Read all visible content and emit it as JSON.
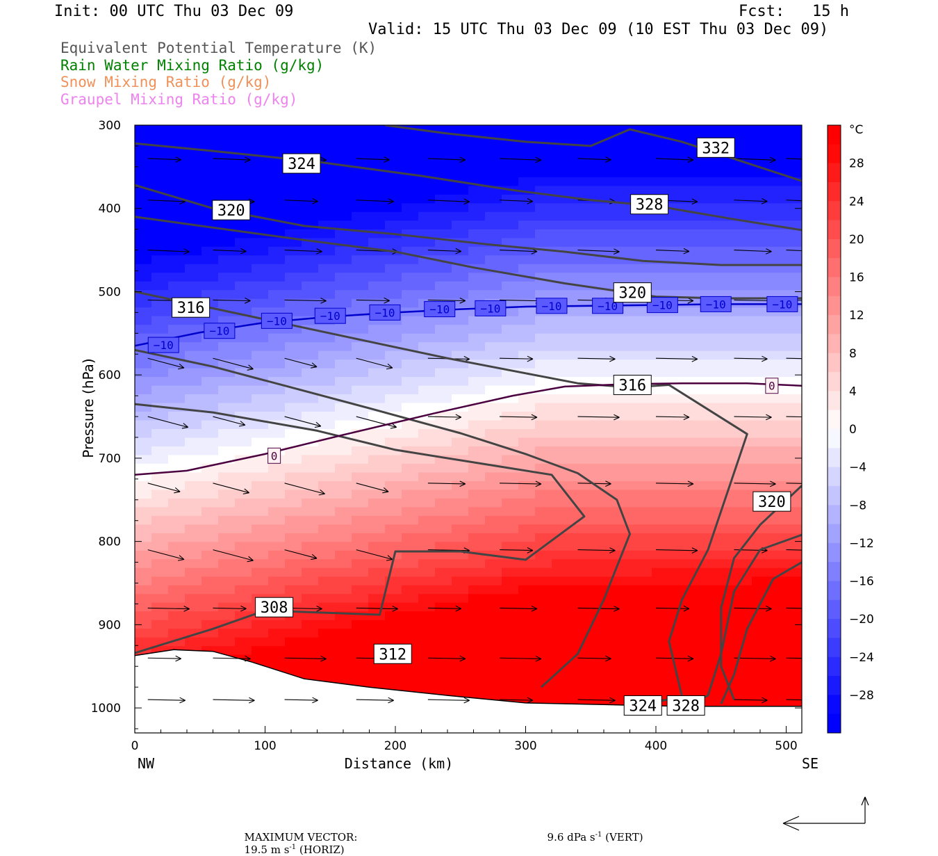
{
  "header": {
    "init": "Init: 00 UTC Thu 03 Dec 09",
    "fcst": "Fcst:   15 h",
    "valid": "Valid: 15 UTC Thu 03 Dec 09 (10 EST Thu 03 Dec 09)"
  },
  "legend": [
    {
      "text": "Equivalent Potential Temperature (K)",
      "color": "#555555"
    },
    {
      "text": "Rain Water Mixing Ratio (g/kg)",
      "color": "#008000"
    },
    {
      "text": "Snow Mixing Ratio (g/kg)",
      "color": "#f0915a"
    },
    {
      "text": "Graupel Mixing Ratio (g/kg)",
      "color": "#ee82ee"
    }
  ],
  "footer": {
    "max_vector_label": "MAXIMUM VECTOR:",
    "horiz_value": "19.5 m s",
    "horiz_unit": " (HORIZ)",
    "vert_value": "9.6 dPa s",
    "vert_unit": " (VERT)",
    "exponent": "-1"
  },
  "chart_data": {
    "type": "heatmap",
    "xlabel": "Distance (km)",
    "ylabel": "Pressure (hPa)",
    "x_ticks": [
      0,
      100,
      200,
      300,
      400,
      500
    ],
    "y_ticks": [
      300,
      400,
      500,
      600,
      700,
      800,
      900,
      1000
    ],
    "xlim": [
      0,
      512
    ],
    "ylim": [
      300,
      1030
    ],
    "x_end_labels": {
      "left": "NW",
      "right": "SE"
    },
    "colorbar": {
      "unit": "°C",
      "range": [
        -32,
        32
      ],
      "tick_labels": [
        "28",
        "24",
        "20",
        "16",
        "12",
        "8",
        "4",
        "0",
        "−4",
        "−8",
        "−12",
        "−16",
        "−20",
        "−24",
        "−28"
      ],
      "tick_values": [
        28,
        24,
        20,
        16,
        12,
        8,
        4,
        0,
        -4,
        -8,
        -12,
        -16,
        -20,
        -24,
        -28
      ]
    },
    "temperature_contours": [
      {
        "value": -10,
        "label": "−10",
        "color": "#0000cc",
        "points": [
          [
            0,
            565
          ],
          [
            50,
            549
          ],
          [
            100,
            537
          ],
          [
            150,
            530
          ],
          [
            200,
            525
          ],
          [
            250,
            521
          ],
          [
            300,
            518
          ],
          [
            350,
            517
          ],
          [
            400,
            516
          ],
          [
            450,
            515
          ],
          [
            512,
            515
          ]
        ],
        "labels_at": [
          [
            22,
            564
          ],
          [
            65,
            547
          ],
          [
            109,
            535
          ],
          [
            150,
            529
          ],
          [
            192,
            525
          ],
          [
            234,
            521
          ],
          [
            273,
            520
          ],
          [
            320,
            517
          ],
          [
            363,
            517
          ],
          [
            405,
            516
          ],
          [
            446,
            515
          ],
          [
            497,
            515
          ]
        ]
      },
      {
        "value": 0,
        "label": "0",
        "color": "#4b0040",
        "points": [
          [
            0,
            720
          ],
          [
            40,
            715
          ],
          [
            100,
            695
          ],
          [
            160,
            672
          ],
          [
            230,
            646
          ],
          [
            290,
            625
          ],
          [
            330,
            614
          ],
          [
            380,
            611
          ],
          [
            420,
            610
          ],
          [
            470,
            610
          ],
          [
            512,
            613
          ]
        ],
        "labels_at": [
          [
            107,
            697
          ],
          [
            489,
            613
          ]
        ]
      }
    ],
    "theta_e_contours": [
      {
        "value": 332,
        "label": "332",
        "points": [
          [
            192,
            300
          ],
          [
            240,
            310
          ],
          [
            300,
            320
          ],
          [
            350,
            325
          ],
          [
            380,
            305
          ],
          [
            420,
            320
          ],
          [
            512,
            367
          ]
        ],
        "labels_at": [
          [
            446,
            327
          ]
        ]
      },
      {
        "value": 328,
        "label": "328",
        "points": [
          [
            0,
            322
          ],
          [
            60,
            331
          ],
          [
            140,
            344
          ],
          [
            220,
            361
          ],
          [
            290,
            378
          ],
          [
            350,
            390
          ],
          [
            400,
            397
          ],
          [
            460,
            413
          ],
          [
            512,
            426
          ]
        ],
        "labels_at": [
          [
            395,
            395
          ]
        ]
      },
      {
        "value": 324,
        "label": "324",
        "points": [
          [
            0,
            372
          ],
          [
            60,
            400
          ],
          [
            130,
            421
          ],
          [
            200,
            431
          ],
          [
            270,
            443
          ],
          [
            330,
            452
          ],
          [
            390,
            463
          ],
          [
            450,
            468
          ],
          [
            512,
            468
          ]
        ],
        "labels_at": [
          [
            128,
            346
          ]
        ]
      },
      {
        "value": 320,
        "label": "320",
        "points": [
          [
            0,
            410
          ],
          [
            60,
            423
          ],
          [
            130,
            438
          ],
          [
            200,
            452
          ],
          [
            260,
            471
          ],
          [
            330,
            490
          ],
          [
            400,
            506
          ],
          [
            450,
            508
          ],
          [
            512,
            508
          ]
        ],
        "labels_at": [
          [
            74,
            402
          ],
          [
            382,
            501
          ]
        ]
      },
      {
        "value": 316,
        "label": "316",
        "points": [
          [
            0,
            500
          ],
          [
            60,
            520
          ],
          [
            120,
            540
          ],
          [
            180,
            560
          ],
          [
            240,
            580
          ],
          [
            300,
            598
          ],
          [
            340,
            610
          ],
          [
            380,
            615
          ],
          [
            410,
            612
          ],
          [
            470,
            671
          ],
          [
            440,
            810
          ],
          [
            420,
            870
          ],
          [
            410,
            920
          ],
          [
            420,
            986
          ],
          [
            400,
            993
          ]
        ],
        "labels_at": [
          [
            43,
            519
          ],
          [
            382,
            612
          ]
        ]
      },
      {
        "value": 320,
        "label": "320",
        "points": [
          [
            512,
            733
          ],
          [
            480,
            780
          ],
          [
            460,
            820
          ],
          [
            450,
            880
          ],
          [
            450,
            950
          ],
          [
            460,
            990
          ]
        ],
        "labels_at": [
          [
            489,
            752
          ]
        ]
      },
      {
        "value": 312,
        "label": "312",
        "points": [
          [
            0,
            570
          ],
          [
            60,
            590
          ],
          [
            120,
            615
          ],
          [
            180,
            640
          ],
          [
            250,
            670
          ],
          [
            300,
            695
          ],
          [
            340,
            718
          ],
          [
            370,
            750
          ],
          [
            380,
            791
          ],
          [
            360,
            870
          ],
          [
            340,
            935
          ],
          [
            312,
            975
          ]
        ],
        "labels_at": [
          [
            198,
            935
          ]
        ]
      },
      {
        "value": 308,
        "label": "308",
        "points": [
          [
            0,
            635
          ],
          [
            60,
            645
          ],
          [
            140,
            667
          ],
          [
            200,
            690
          ],
          [
            260,
            705
          ],
          [
            320,
            720
          ],
          [
            345,
            770
          ],
          [
            300,
            822
          ],
          [
            250,
            812
          ],
          [
            200,
            812
          ],
          [
            188,
            888
          ],
          [
            100,
            883
          ],
          [
            60,
            905
          ],
          [
            0,
            934
          ]
        ],
        "labels_at": [
          [
            107,
            879
          ]
        ]
      },
      {
        "value": 324,
        "label": "324",
        "points": [
          [
            512,
            792
          ],
          [
            480,
            810
          ],
          [
            460,
            860
          ],
          [
            450,
            935
          ],
          [
            440,
            985
          ],
          [
            420,
            1000
          ]
        ],
        "labels_at": [
          [
            390,
            997
          ]
        ]
      },
      {
        "value": 328,
        "label": "328",
        "points": [
          [
            512,
            825
          ],
          [
            490,
            845
          ],
          [
            470,
            905
          ],
          [
            460,
            960
          ],
          [
            450,
            995
          ]
        ],
        "labels_at": [
          [
            423,
            997
          ]
        ]
      }
    ],
    "terrain_pressure": [
      [
        0,
        937
      ],
      [
        30,
        930
      ],
      [
        60,
        932
      ],
      [
        90,
        945
      ],
      [
        130,
        965
      ],
      [
        180,
        975
      ],
      [
        240,
        985
      ],
      [
        300,
        994
      ],
      [
        360,
        996
      ],
      [
        420,
        998
      ],
      [
        512,
        998
      ]
    ],
    "wind_vector_grid": {
      "rows_pressure": [
        340,
        390,
        450,
        510,
        580,
        650,
        730,
        810,
        880,
        940,
        990
      ],
      "columns_km": [
        10,
        60,
        115,
        170,
        225,
        280,
        340,
        400,
        460,
        500
      ]
    },
    "max_vector": {
      "horiz": 19.5,
      "horiz_unit": "m s-1",
      "vert": 9.6,
      "vert_unit": "dPa s-1"
    }
  }
}
